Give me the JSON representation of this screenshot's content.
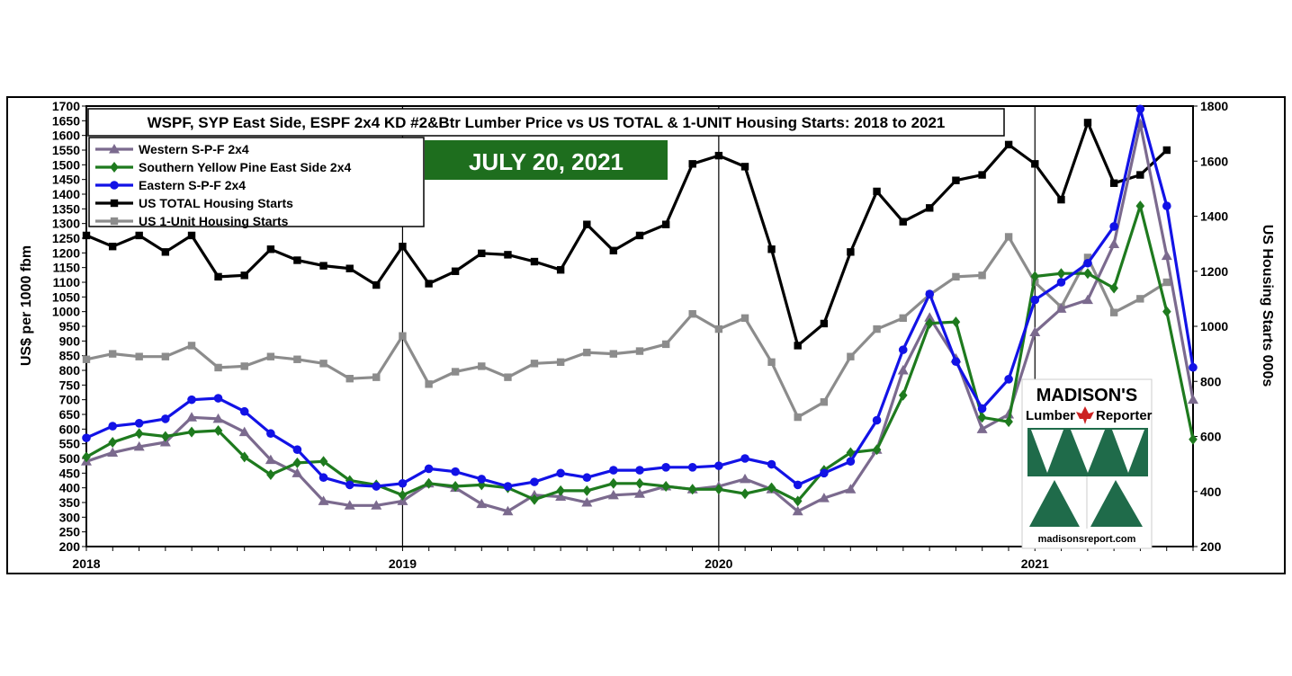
{
  "chart_data": {
    "type": "line",
    "title": "WSPF, SYP East Side, ESPF 2x4 KD #2&Btr  Lumber Price  vs US TOTAL & 1-UNIT Housing Starts: 2018 to 2021",
    "date_badge": "JULY 20, 2021",
    "ylabel_left": "US$ per 1000 fbm",
    "ylabel_right": "US Housing  Starts 000s",
    "ylim_left": [
      200,
      1700
    ],
    "ylim_right": [
      200,
      1800
    ],
    "y_ticks_left": [
      "200",
      "250",
      "300",
      "350",
      "400",
      "450",
      "500",
      "550",
      "600",
      "650",
      "700",
      "750",
      "800",
      "850",
      "900",
      "950",
      "1000",
      "1050",
      "1100",
      "1150",
      "1200",
      "1250",
      "1300",
      "1350",
      "1400",
      "1450",
      "1500",
      "1550",
      "1600",
      "1650",
      "1700"
    ],
    "y_ticks_right": [
      "200",
      "400",
      "600",
      "800",
      "1000",
      "1200",
      "1400",
      "1600",
      "1800"
    ],
    "x_year_labels": [
      "2018",
      "2019",
      "2020",
      "2021"
    ],
    "grid": "vertical lines at year boundaries",
    "legend_position": "top-left",
    "series": [
      {
        "name": "Western S-P-F 2x4",
        "axis": "left",
        "color": "#7b6a8e",
        "marker": "triangle",
        "x": [
          2018.0,
          2018.083,
          2018.167,
          2018.25,
          2018.333,
          2018.417,
          2018.5,
          2018.583,
          2018.667,
          2018.75,
          2018.833,
          2018.917,
          2019.0,
          2019.083,
          2019.167,
          2019.25,
          2019.333,
          2019.417,
          2019.5,
          2019.583,
          2019.667,
          2019.75,
          2019.833,
          2019.917,
          2020.0,
          2020.083,
          2020.167,
          2020.25,
          2020.333,
          2020.417,
          2020.5,
          2020.583,
          2020.667,
          2020.75,
          2020.833,
          2020.917,
          2021.0,
          2021.083,
          2021.167,
          2021.25,
          2021.333,
          2021.417,
          2021.5
        ],
        "values": [
          490,
          520,
          540,
          555,
          640,
          635,
          590,
          495,
          450,
          355,
          340,
          340,
          355,
          415,
          400,
          345,
          320,
          375,
          370,
          350,
          375,
          380,
          405,
          395,
          405,
          430,
          395,
          320,
          365,
          395,
          530,
          800,
          980,
          840,
          600,
          650,
          930,
          1010,
          1040,
          1230,
          1640,
          1190,
          700
        ]
      },
      {
        "name": "Southern Yellow Pine East Side 2x4",
        "axis": "left",
        "color": "#1e7a1e",
        "marker": "diamond",
        "x": [
          2018.0,
          2018.083,
          2018.167,
          2018.25,
          2018.333,
          2018.417,
          2018.5,
          2018.583,
          2018.667,
          2018.75,
          2018.833,
          2018.917,
          2019.0,
          2019.083,
          2019.167,
          2019.25,
          2019.333,
          2019.417,
          2019.5,
          2019.583,
          2019.667,
          2019.75,
          2019.833,
          2019.917,
          2020.0,
          2020.083,
          2020.167,
          2020.25,
          2020.333,
          2020.417,
          2020.5,
          2020.583,
          2020.667,
          2020.75,
          2020.833,
          2020.917,
          2021.0,
          2021.083,
          2021.167,
          2021.25,
          2021.333,
          2021.417,
          2021.5
        ],
        "values": [
          505,
          555,
          585,
          575,
          590,
          595,
          505,
          445,
          485,
          490,
          425,
          410,
          375,
          415,
          405,
          410,
          400,
          360,
          390,
          390,
          415,
          415,
          405,
          395,
          395,
          380,
          400,
          355,
          460,
          520,
          530,
          715,
          960,
          965,
          640,
          625,
          1120,
          1130,
          1130,
          1080,
          1360,
          1000,
          565
        ]
      },
      {
        "name": "Eastern S-P-F 2x4",
        "axis": "left",
        "color": "#1212e6",
        "marker": "circle",
        "x": [
          2018.0,
          2018.083,
          2018.167,
          2018.25,
          2018.333,
          2018.417,
          2018.5,
          2018.583,
          2018.667,
          2018.75,
          2018.833,
          2018.917,
          2019.0,
          2019.083,
          2019.167,
          2019.25,
          2019.333,
          2019.417,
          2019.5,
          2019.583,
          2019.667,
          2019.75,
          2019.833,
          2019.917,
          2020.0,
          2020.083,
          2020.167,
          2020.25,
          2020.333,
          2020.417,
          2020.5,
          2020.583,
          2020.667,
          2020.75,
          2020.833,
          2020.917,
          2021.0,
          2021.083,
          2021.167,
          2021.25,
          2021.333,
          2021.417,
          2021.5
        ],
        "values": [
          570,
          610,
          620,
          635,
          700,
          705,
          660,
          585,
          530,
          435,
          410,
          405,
          415,
          465,
          455,
          430,
          405,
          420,
          450,
          435,
          460,
          460,
          470,
          470,
          475,
          500,
          480,
          410,
          450,
          490,
          630,
          870,
          1060,
          830,
          670,
          770,
          1040,
          1100,
          1165,
          1290,
          1690,
          1360,
          810
        ]
      },
      {
        "name": "US TOTAL Housing Starts",
        "axis": "right",
        "color": "#000000",
        "marker": "square",
        "x": [
          2018.0,
          2018.083,
          2018.167,
          2018.25,
          2018.333,
          2018.417,
          2018.5,
          2018.583,
          2018.667,
          2018.75,
          2018.833,
          2018.917,
          2019.0,
          2019.083,
          2019.167,
          2019.25,
          2019.333,
          2019.417,
          2019.5,
          2019.583,
          2019.667,
          2019.75,
          2019.833,
          2019.917,
          2020.0,
          2020.083,
          2020.167,
          2020.25,
          2020.333,
          2020.417,
          2020.5,
          2020.583,
          2020.667,
          2020.75,
          2020.833,
          2020.917,
          2021.0,
          2021.083,
          2021.167,
          2021.25,
          2021.333,
          2021.417
        ],
        "values": [
          1330,
          1290,
          1330,
          1270,
          1330,
          1180,
          1185,
          1280,
          1240,
          1220,
          1210,
          1150,
          1290,
          1155,
          1200,
          1265,
          1260,
          1235,
          1205,
          1370,
          1275,
          1330,
          1370,
          1590,
          1620,
          1580,
          1280,
          930,
          1010,
          1270,
          1490,
          1380,
          1430,
          1530,
          1550,
          1660,
          1590,
          1460,
          1740,
          1520,
          1550,
          1640
        ]
      },
      {
        "name": "US 1-Unit Housing Starts",
        "axis": "right",
        "color": "#8c8c8c",
        "marker": "square",
        "x": [
          2018.0,
          2018.083,
          2018.167,
          2018.25,
          2018.333,
          2018.417,
          2018.5,
          2018.583,
          2018.667,
          2018.75,
          2018.833,
          2018.917,
          2019.0,
          2019.083,
          2019.167,
          2019.25,
          2019.333,
          2019.417,
          2019.5,
          2019.583,
          2019.667,
          2019.75,
          2019.833,
          2019.917,
          2020.0,
          2020.083,
          2020.167,
          2020.25,
          2020.333,
          2020.417,
          2020.5,
          2020.583,
          2020.667,
          2020.75,
          2020.833,
          2020.917,
          2021.0,
          2021.083,
          2021.167,
          2021.25,
          2021.333,
          2021.417
        ],
        "values": [
          880,
          900,
          890,
          890,
          930,
          850,
          855,
          890,
          880,
          865,
          810,
          815,
          965,
          790,
          835,
          855,
          815,
          865,
          870,
          905,
          900,
          910,
          935,
          1045,
          990,
          1030,
          870,
          670,
          725,
          890,
          990,
          1030,
          1115,
          1180,
          1185,
          1325,
          1160,
          1070,
          1250,
          1050,
          1100,
          1160
        ]
      }
    ],
    "logo": {
      "line1": "MADISON'S",
      "line2a": "Lumber",
      "line2b": "Reporter",
      "url": "madisonsreport.com"
    }
  }
}
